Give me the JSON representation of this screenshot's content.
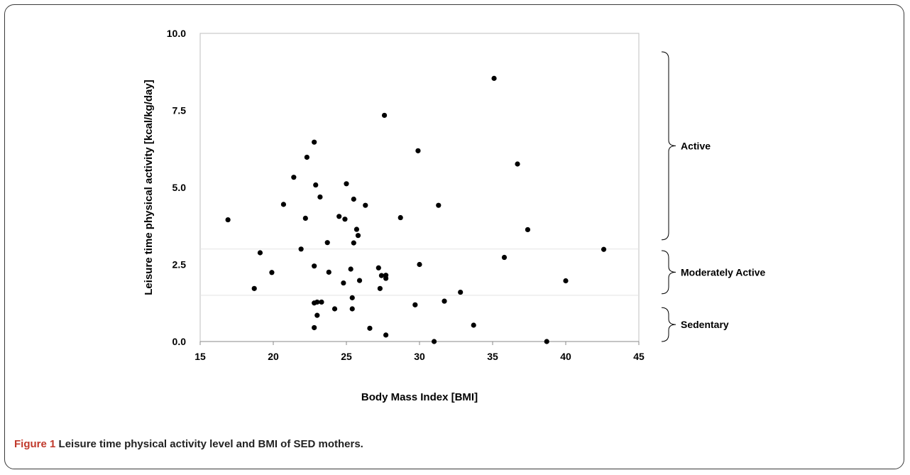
{
  "chart_data": {
    "type": "scatter",
    "title": "",
    "xlabel": "Body Mass Index [BMI]",
    "ylabel": "Leisure time physical activity [kcal/kg/day]",
    "xlim": [
      15,
      45
    ],
    "ylim": [
      0,
      10
    ],
    "xticks": [
      "15",
      "20",
      "25",
      "30",
      "35",
      "40",
      "45"
    ],
    "yticks": [
      "0.0",
      "2.5",
      "5.0",
      "7.5",
      "10.0"
    ],
    "grid": false,
    "reference_lines_y": [
      1.5,
      3.0
    ],
    "bands": [
      {
        "label": "Active",
        "y_from": 3.3,
        "y_to": 9.4
      },
      {
        "label": "Moderately Active",
        "y_from": 1.55,
        "y_to": 2.95
      },
      {
        "label": "Sedentary",
        "y_from": 0.0,
        "y_to": 1.1
      }
    ],
    "series": [
      {
        "points": [
          [
            16.9,
            3.95
          ],
          [
            18.7,
            1.72
          ],
          [
            19.1,
            2.88
          ],
          [
            19.9,
            2.24
          ],
          [
            20.7,
            4.45
          ],
          [
            21.4,
            5.33
          ],
          [
            21.9,
            3.0
          ],
          [
            22.2,
            4.0
          ],
          [
            22.3,
            5.98
          ],
          [
            22.8,
            6.47
          ],
          [
            22.8,
            2.45
          ],
          [
            22.8,
            1.25
          ],
          [
            22.8,
            0.45
          ],
          [
            22.9,
            5.08
          ],
          [
            23.0,
            0.85
          ],
          [
            23.0,
            1.28
          ],
          [
            23.2,
            4.69
          ],
          [
            23.3,
            1.28
          ],
          [
            23.7,
            3.21
          ],
          [
            23.8,
            2.25
          ],
          [
            24.2,
            1.06
          ],
          [
            24.5,
            4.06
          ],
          [
            24.8,
            1.9
          ],
          [
            24.9,
            3.97
          ],
          [
            25.0,
            5.12
          ],
          [
            25.3,
            2.35
          ],
          [
            25.4,
            1.42
          ],
          [
            25.4,
            1.06
          ],
          [
            25.5,
            3.2
          ],
          [
            25.5,
            4.62
          ],
          [
            25.7,
            3.64
          ],
          [
            25.8,
            3.44
          ],
          [
            25.9,
            1.98
          ],
          [
            26.3,
            4.42
          ],
          [
            26.6,
            0.43
          ],
          [
            27.2,
            2.39
          ],
          [
            27.3,
            1.72
          ],
          [
            27.4,
            2.14
          ],
          [
            27.6,
            7.34
          ],
          [
            27.7,
            0.21
          ],
          [
            27.7,
            2.15
          ],
          [
            27.7,
            2.05
          ],
          [
            28.7,
            4.02
          ],
          [
            29.7,
            1.19
          ],
          [
            29.9,
            6.19
          ],
          [
            30.0,
            2.5
          ],
          [
            31.0,
            0.0
          ],
          [
            31.3,
            4.42
          ],
          [
            31.7,
            1.31
          ],
          [
            32.8,
            1.6
          ],
          [
            33.7,
            0.53
          ],
          [
            35.1,
            8.54
          ],
          [
            35.8,
            2.73
          ],
          [
            36.7,
            5.76
          ],
          [
            37.4,
            3.63
          ],
          [
            38.7,
            0.0
          ],
          [
            40.0,
            1.97
          ],
          [
            42.6,
            2.99
          ]
        ]
      }
    ]
  },
  "caption": {
    "figure_number": "Figure 1",
    "text": "Leisure time physical activity level and BMI of SED mothers."
  }
}
